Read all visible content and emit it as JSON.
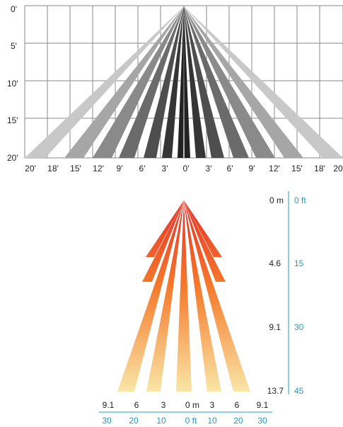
{
  "top_diagram": {
    "y_labels": [
      "0'",
      "5'",
      "10'",
      "15'",
      "20'"
    ],
    "x_labels": [
      "20'",
      "18'",
      "15'",
      "12'",
      "9'",
      "6'",
      "3'",
      "0'",
      "3'",
      "6'",
      "9'",
      "12'",
      "15'",
      "18'",
      "20"
    ],
    "beam_colors": [
      "#c8c8c8",
      "#a6a6a6",
      "#8a8a8a",
      "#6b6b6b",
      "#4e4e4e",
      "#353535",
      "#222222"
    ],
    "grid_color": "#8a8a8a"
  },
  "bottom_diagram": {
    "right_labels": [
      {
        "m": "0 m",
        "ft": "0 ft"
      },
      {
        "m": "4.6",
        "ft": "15"
      },
      {
        "m": "9.1",
        "ft": "30"
      },
      {
        "m": "13.7",
        "ft": "45"
      }
    ],
    "bottom_m_labels": [
      "9.1",
      "6",
      "3",
      "0 m",
      "3",
      "6",
      "9.1"
    ],
    "bottom_ft_labels": [
      "30",
      "20",
      "10",
      "0 ft",
      "10",
      "20",
      "30"
    ],
    "gradient": {
      "start": "#e53127",
      "mid": "#f47a2c",
      "end": "#f9e6a6"
    },
    "axis_color": "#1e9bc4"
  }
}
